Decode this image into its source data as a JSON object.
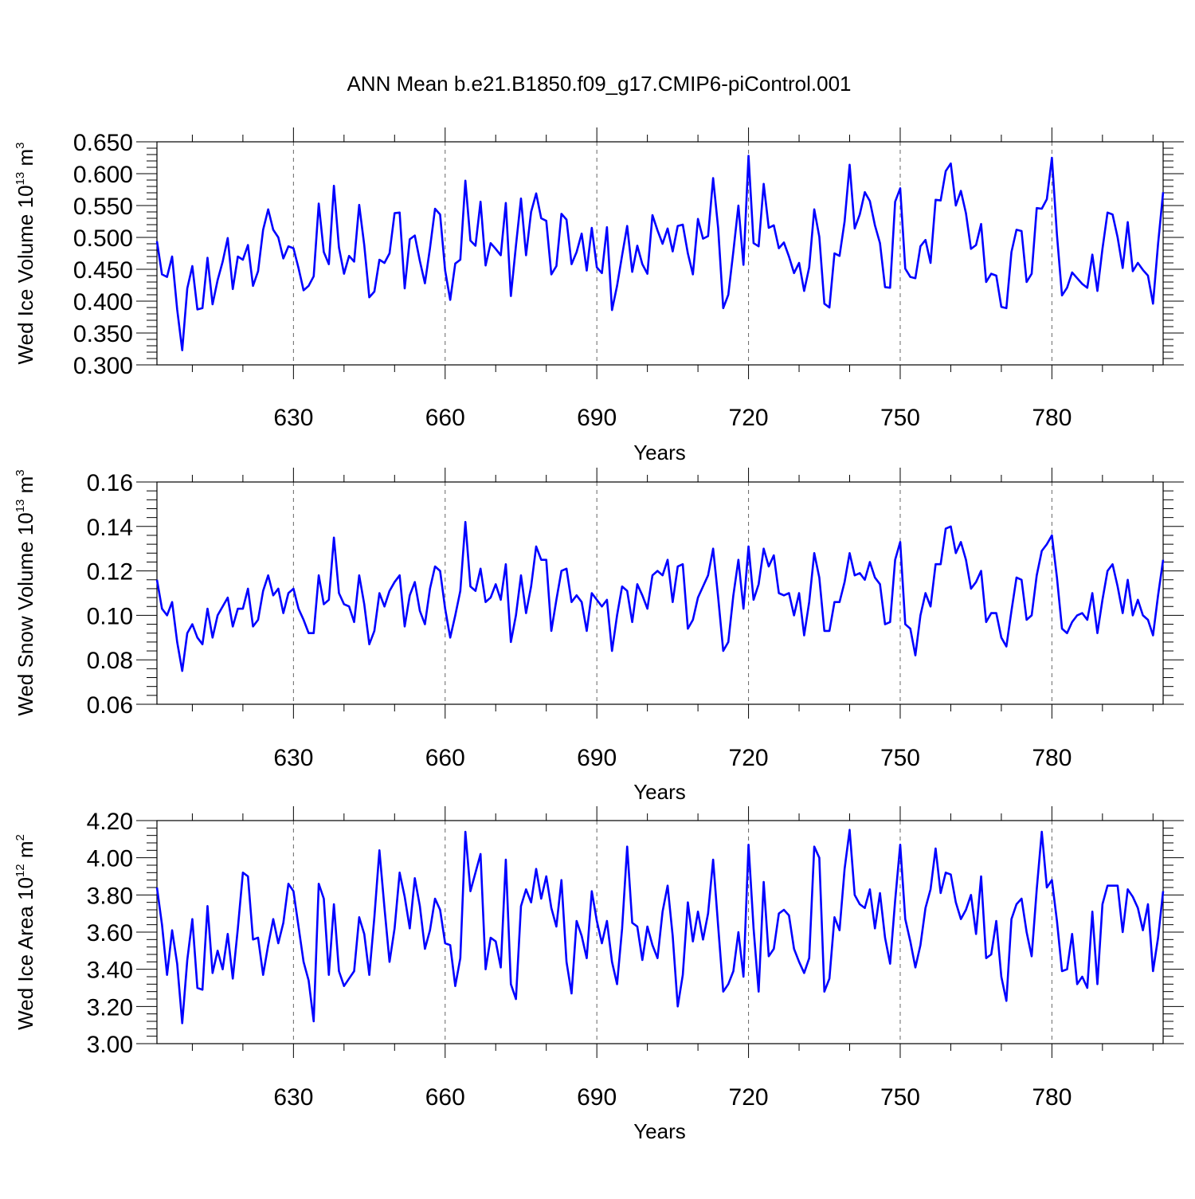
{
  "title": "ANN Mean b.e21.B1850.f09_g17.CMIP6-piControl.001",
  "colors": {
    "line": "#0000ff",
    "axis": "#000000",
    "grid": "#666666"
  },
  "chart_data": [
    {
      "type": "line",
      "xlabel": "Years",
      "ylabel": {
        "text": "Wed Ice Volume 10",
        "exp": "13",
        "unit": "m",
        "unit_exp": "3"
      },
      "x_start": 603,
      "xlim": [
        603,
        802
      ],
      "x_ticks": [
        630,
        660,
        690,
        720,
        750,
        780
      ],
      "x_tick_labels": [
        "630",
        "660",
        "690",
        "720",
        "750",
        "780"
      ],
      "ylim": [
        0.3,
        0.65
      ],
      "y_ticks": [
        0.3,
        0.35,
        0.4,
        0.45,
        0.5,
        0.55,
        0.6,
        0.65
      ],
      "y_tick_labels": [
        "0.300",
        "0.350",
        "0.400",
        "0.450",
        "0.500",
        "0.550",
        "0.600",
        "0.650"
      ],
      "grid": "vertical dashed",
      "series": [
        {
          "values": [
            0.494,
            0.442,
            0.438,
            0.47,
            0.387,
            0.323,
            0.42,
            0.455,
            0.387,
            0.389,
            0.468,
            0.395,
            0.433,
            0.462,
            0.499,
            0.419,
            0.47,
            0.465,
            0.488,
            0.424,
            0.447,
            0.512,
            0.544,
            0.512,
            0.5,
            0.467,
            0.486,
            0.483,
            0.452,
            0.417,
            0.424,
            0.439,
            0.553,
            0.477,
            0.458,
            0.581,
            0.484,
            0.443,
            0.471,
            0.462,
            0.551,
            0.488,
            0.406,
            0.415,
            0.465,
            0.46,
            0.475,
            0.538,
            0.539,
            0.42,
            0.497,
            0.503,
            0.463,
            0.428,
            0.483,
            0.545,
            0.536,
            0.448,
            0.402,
            0.459,
            0.465,
            0.589,
            0.495,
            0.487,
            0.556,
            0.456,
            0.491,
            0.482,
            0.472,
            0.554,
            0.408,
            0.487,
            0.561,
            0.472,
            0.54,
            0.569,
            0.53,
            0.526,
            0.442,
            0.455,
            0.537,
            0.528,
            0.458,
            0.477,
            0.506,
            0.448,
            0.515,
            0.453,
            0.444,
            0.516,
            0.386,
            0.424,
            0.472,
            0.518,
            0.446,
            0.487,
            0.458,
            0.443,
            0.535,
            0.511,
            0.49,
            0.514,
            0.478,
            0.518,
            0.52,
            0.475,
            0.442,
            0.529,
            0.498,
            0.502,
            0.593,
            0.514,
            0.389,
            0.41,
            0.478,
            0.55,
            0.457,
            0.628,
            0.491,
            0.486,
            0.584,
            0.515,
            0.519,
            0.483,
            0.492,
            0.47,
            0.444,
            0.46,
            0.416,
            0.453,
            0.544,
            0.501,
            0.396,
            0.39,
            0.475,
            0.471,
            0.525,
            0.614,
            0.514,
            0.536,
            0.571,
            0.557,
            0.519,
            0.491,
            0.422,
            0.421,
            0.556,
            0.577,
            0.451,
            0.438,
            0.436,
            0.486,
            0.496,
            0.46,
            0.559,
            0.558,
            0.604,
            0.616,
            0.55,
            0.573,
            0.538,
            0.482,
            0.488,
            0.521,
            0.43,
            0.443,
            0.44,
            0.391,
            0.389,
            0.477,
            0.512,
            0.51,
            0.43,
            0.443,
            0.546,
            0.545,
            0.56,
            0.625,
            0.504,
            0.409,
            0.421,
            0.445,
            0.436,
            0.427,
            0.421,
            0.473,
            0.416,
            0.482,
            0.539,
            0.536,
            0.5,
            0.452,
            0.524,
            0.447,
            0.46,
            0.449,
            0.44,
            0.396,
            0.49,
            0.571
          ]
        }
      ]
    },
    {
      "type": "line",
      "xlabel": "Years",
      "ylabel": {
        "text": "Wed Snow Volume 10",
        "exp": "13",
        "unit": "m",
        "unit_exp": "3"
      },
      "x_start": 603,
      "xlim": [
        603,
        802
      ],
      "x_ticks": [
        630,
        660,
        690,
        720,
        750,
        780
      ],
      "x_tick_labels": [
        "630",
        "660",
        "690",
        "720",
        "750",
        "780"
      ],
      "ylim": [
        0.06,
        0.16
      ],
      "y_ticks": [
        0.06,
        0.08,
        0.1,
        0.12,
        0.14,
        0.16
      ],
      "y_tick_labels": [
        "0.06",
        "0.08",
        "0.10",
        "0.12",
        "0.14",
        "0.16"
      ],
      "grid": "vertical dashed",
      "series": [
        {
          "values": [
            0.116,
            0.103,
            0.1,
            0.106,
            0.088,
            0.075,
            0.092,
            0.096,
            0.09,
            0.087,
            0.103,
            0.09,
            0.1,
            0.104,
            0.108,
            0.095,
            0.103,
            0.103,
            0.112,
            0.095,
            0.098,
            0.111,
            0.118,
            0.109,
            0.112,
            0.101,
            0.11,
            0.112,
            0.103,
            0.098,
            0.092,
            0.092,
            0.118,
            0.105,
            0.107,
            0.135,
            0.11,
            0.105,
            0.104,
            0.097,
            0.118,
            0.105,
            0.087,
            0.093,
            0.11,
            0.104,
            0.111,
            0.115,
            0.118,
            0.095,
            0.109,
            0.115,
            0.102,
            0.096,
            0.112,
            0.122,
            0.12,
            0.103,
            0.09,
            0.1,
            0.111,
            0.142,
            0.113,
            0.111,
            0.121,
            0.106,
            0.108,
            0.114,
            0.107,
            0.123,
            0.088,
            0.1,
            0.118,
            0.101,
            0.113,
            0.131,
            0.125,
            0.125,
            0.093,
            0.107,
            0.12,
            0.121,
            0.106,
            0.109,
            0.106,
            0.093,
            0.11,
            0.107,
            0.104,
            0.107,
            0.084,
            0.1,
            0.113,
            0.111,
            0.097,
            0.114,
            0.109,
            0.103,
            0.118,
            0.12,
            0.118,
            0.125,
            0.106,
            0.122,
            0.123,
            0.094,
            0.098,
            0.108,
            0.113,
            0.118,
            0.13,
            0.108,
            0.084,
            0.088,
            0.109,
            0.125,
            0.103,
            0.131,
            0.107,
            0.114,
            0.13,
            0.122,
            0.127,
            0.11,
            0.109,
            0.11,
            0.1,
            0.11,
            0.091,
            0.106,
            0.128,
            0.117,
            0.093,
            0.093,
            0.106,
            0.106,
            0.115,
            0.128,
            0.118,
            0.119,
            0.116,
            0.124,
            0.117,
            0.114,
            0.096,
            0.097,
            0.125,
            0.133,
            0.096,
            0.094,
            0.082,
            0.1,
            0.11,
            0.104,
            0.123,
            0.123,
            0.139,
            0.14,
            0.128,
            0.133,
            0.125,
            0.112,
            0.115,
            0.12,
            0.097,
            0.101,
            0.101,
            0.09,
            0.086,
            0.102,
            0.117,
            0.116,
            0.098,
            0.1,
            0.118,
            0.129,
            0.132,
            0.136,
            0.117,
            0.094,
            0.092,
            0.097,
            0.1,
            0.101,
            0.098,
            0.11,
            0.092,
            0.107,
            0.12,
            0.123,
            0.113,
            0.101,
            0.116,
            0.1,
            0.107,
            0.1,
            0.098,
            0.091,
            0.109,
            0.125
          ]
        }
      ]
    },
    {
      "type": "line",
      "xlabel": "Years",
      "ylabel": {
        "text": "Wed Ice Area 10",
        "exp": "12",
        "unit": "m",
        "unit_exp": "2"
      },
      "x_start": 603,
      "xlim": [
        603,
        802
      ],
      "x_ticks": [
        630,
        660,
        690,
        720,
        750,
        780
      ],
      "x_tick_labels": [
        "630",
        "660",
        "690",
        "720",
        "750",
        "780"
      ],
      "ylim": [
        3.0,
        4.2
      ],
      "y_ticks": [
        3.0,
        3.2,
        3.4,
        3.6,
        3.8,
        4.0,
        4.2
      ],
      "y_tick_labels": [
        "3.00",
        "3.20",
        "3.40",
        "3.60",
        "3.80",
        "4.00",
        "4.20"
      ],
      "grid": "vertical dashed",
      "series": [
        {
          "values": [
            3.84,
            3.64,
            3.37,
            3.61,
            3.43,
            3.11,
            3.45,
            3.67,
            3.3,
            3.29,
            3.74,
            3.38,
            3.5,
            3.4,
            3.59,
            3.35,
            3.62,
            3.92,
            3.9,
            3.56,
            3.57,
            3.37,
            3.53,
            3.67,
            3.54,
            3.65,
            3.86,
            3.82,
            3.63,
            3.44,
            3.34,
            3.12,
            3.86,
            3.78,
            3.37,
            3.75,
            3.39,
            3.31,
            3.35,
            3.39,
            3.68,
            3.59,
            3.37,
            3.68,
            4.04,
            3.73,
            3.44,
            3.62,
            3.92,
            3.79,
            3.62,
            3.89,
            3.74,
            3.51,
            3.61,
            3.78,
            3.72,
            3.54,
            3.53,
            3.31,
            3.46,
            4.14,
            3.82,
            3.92,
            4.02,
            3.4,
            3.57,
            3.55,
            3.41,
            3.99,
            3.32,
            3.24,
            3.74,
            3.83,
            3.76,
            3.94,
            3.78,
            3.9,
            3.73,
            3.63,
            3.88,
            3.44,
            3.27,
            3.66,
            3.58,
            3.46,
            3.82,
            3.66,
            3.54,
            3.66,
            3.44,
            3.32,
            3.62,
            4.06,
            3.65,
            3.63,
            3.45,
            3.63,
            3.53,
            3.46,
            3.71,
            3.85,
            3.58,
            3.2,
            3.37,
            3.76,
            3.55,
            3.71,
            3.56,
            3.7,
            3.99,
            3.63,
            3.28,
            3.32,
            3.39,
            3.6,
            3.36,
            4.07,
            3.62,
            3.28,
            3.87,
            3.47,
            3.51,
            3.7,
            3.72,
            3.69,
            3.51,
            3.44,
            3.38,
            3.46,
            4.06,
            4.0,
            3.28,
            3.35,
            3.68,
            3.61,
            3.94,
            4.15,
            3.8,
            3.75,
            3.73,
            3.83,
            3.62,
            3.81,
            3.57,
            3.43,
            3.77,
            4.07,
            3.67,
            3.55,
            3.41,
            3.53,
            3.73,
            3.83,
            4.05,
            3.81,
            3.92,
            3.91,
            3.76,
            3.67,
            3.72,
            3.8,
            3.59,
            3.9,
            3.46,
            3.48,
            3.66,
            3.36,
            3.23,
            3.67,
            3.75,
            3.78,
            3.6,
            3.47,
            3.83,
            4.14,
            3.84,
            3.88,
            3.66,
            3.39,
            3.4,
            3.59,
            3.32,
            3.36,
            3.3,
            3.71,
            3.32,
            3.75,
            3.85,
            3.85,
            3.85,
            3.6,
            3.83,
            3.79,
            3.73,
            3.61,
            3.75,
            3.39,
            3.57,
            3.82
          ]
        }
      ]
    }
  ]
}
